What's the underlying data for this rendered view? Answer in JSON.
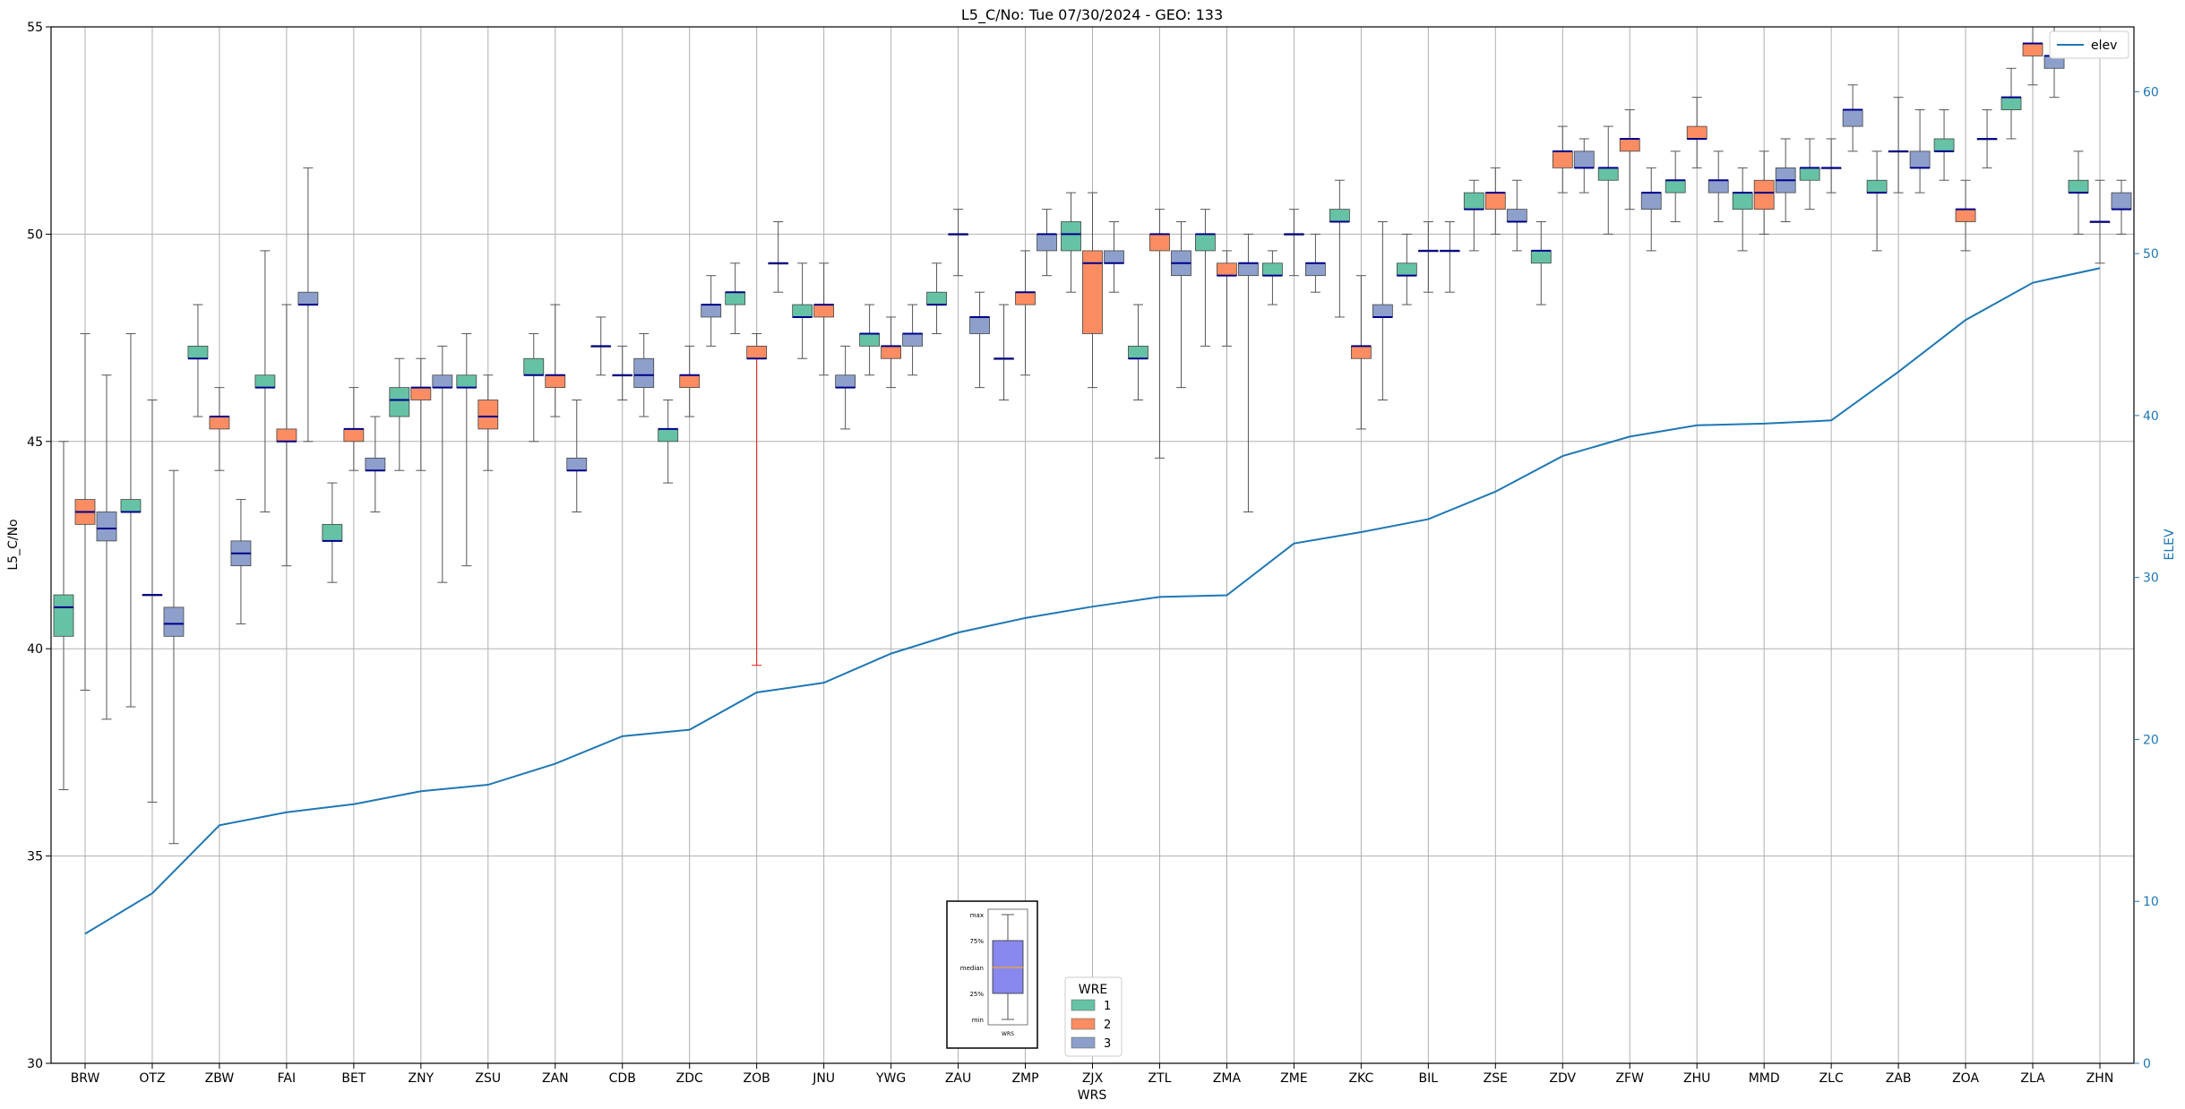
{
  "chart_data": {
    "type": "box",
    "title": "L5_C/No: Tue 07/30/2024 - GEO: 133",
    "xlabel": "WRS",
    "ylabel": "L5_C/No",
    "y2label": "ELEV",
    "ylim": [
      30,
      55
    ],
    "y2lim": [
      0,
      64
    ],
    "yticks": [
      30,
      35,
      40,
      45,
      50,
      55
    ],
    "y2ticks": [
      0,
      10,
      20,
      30,
      40,
      50,
      60
    ],
    "grid": true,
    "categories": [
      "BRW",
      "OTZ",
      "ZBW",
      "FAI",
      "BET",
      "ZNY",
      "ZSU",
      "ZAN",
      "CDB",
      "ZDC",
      "ZOB",
      "JNU",
      "YWG",
      "ZAU",
      "ZMP",
      "ZJX",
      "ZTL",
      "ZMA",
      "ZME",
      "ZKC",
      "BIL",
      "ZSE",
      "ZDV",
      "ZFW",
      "ZHU",
      "MMD",
      "ZLC",
      "ZAB",
      "ZOA",
      "ZLA",
      "ZHN"
    ],
    "colors": {
      "1": "#66c2a5",
      "2": "#fc8d62",
      "3": "#8da0cb",
      "elev": "#1f77b4",
      "median": "#00008b",
      "anomaly": "#e41a1c"
    },
    "legend_wre": {
      "title": "WRE",
      "position": "bottom-center",
      "entries": [
        "1",
        "2",
        "3"
      ]
    },
    "legend_elev": {
      "position": "top-right",
      "label": "elev"
    },
    "key_box": {
      "labels": [
        "max",
        "75%",
        "median",
        "25%",
        "min"
      ],
      "footer": "WRS"
    },
    "elev": [
      8,
      10.5,
      14.7,
      15.5,
      16,
      16.8,
      17.2,
      18.5,
      20.2,
      20.6,
      22.9,
      23.5,
      25.3,
      26.6,
      27.5,
      28.2,
      28.8,
      28.9,
      32.1,
      32.8,
      33.6,
      35.3,
      37.5,
      38.7,
      39.4,
      39.5,
      39.7,
      42.7,
      45.9,
      48.2,
      49.1
    ],
    "boxes": [
      {
        "cat": "BRW",
        "wre": 1,
        "min": 36.6,
        "q1": 40.3,
        "med": 41,
        "q3": 41.3,
        "max": 45
      },
      {
        "cat": "BRW",
        "wre": 2,
        "min": 39,
        "q1": 43,
        "med": 43.3,
        "q3": 43.6,
        "max": 47.6
      },
      {
        "cat": "BRW",
        "wre": 3,
        "min": 38.3,
        "q1": 42.6,
        "med": 42.9,
        "q3": 43.3,
        "max": 46.6
      },
      {
        "cat": "OTZ",
        "wre": 1,
        "min": 38.6,
        "q1": 43.3,
        "med": 43.3,
        "q3": 43.6,
        "max": 47.6
      },
      {
        "cat": "OTZ",
        "wre": 2,
        "min": 36.3,
        "q1": 41.3,
        "med": 41.3,
        "q3": 41.3,
        "max": 46
      },
      {
        "cat": "OTZ",
        "wre": 3,
        "min": 35.3,
        "q1": 40.3,
        "med": 40.6,
        "q3": 41,
        "max": 44.3
      },
      {
        "cat": "ZBW",
        "wre": 1,
        "min": 45.6,
        "q1": 47,
        "med": 47,
        "q3": 47.3,
        "max": 48.3
      },
      {
        "cat": "ZBW",
        "wre": 2,
        "min": 44.3,
        "q1": 45.3,
        "med": 45.6,
        "q3": 45.6,
        "max": 46.3
      },
      {
        "cat": "ZBW",
        "wre": 3,
        "min": 40.6,
        "q1": 42,
        "med": 42.3,
        "q3": 42.6,
        "max": 43.6
      },
      {
        "cat": "FAI",
        "wre": 1,
        "min": 43.3,
        "q1": 46.3,
        "med": 46.3,
        "q3": 46.6,
        "max": 49.6
      },
      {
        "cat": "FAI",
        "wre": 2,
        "min": 42,
        "q1": 45,
        "med": 45,
        "q3": 45.3,
        "max": 48.3
      },
      {
        "cat": "FAI",
        "wre": 3,
        "min": 45,
        "q1": 48.3,
        "med": 48.3,
        "q3": 48.6,
        "max": 51.6
      },
      {
        "cat": "BET",
        "wre": 1,
        "min": 41.6,
        "q1": 42.6,
        "med": 42.6,
        "q3": 43,
        "max": 44
      },
      {
        "cat": "BET",
        "wre": 2,
        "min": 44.3,
        "q1": 45,
        "med": 45.3,
        "q3": 45.3,
        "max": 46.3
      },
      {
        "cat": "BET",
        "wre": 3,
        "min": 43.3,
        "q1": 44.3,
        "med": 44.3,
        "q3": 44.6,
        "max": 45.6
      },
      {
        "cat": "ZNY",
        "wre": 1,
        "min": 44.3,
        "q1": 45.6,
        "med": 46,
        "q3": 46.3,
        "max": 47
      },
      {
        "cat": "ZNY",
        "wre": 2,
        "min": 44.3,
        "q1": 46,
        "med": 46.3,
        "q3": 46.3,
        "max": 47
      },
      {
        "cat": "ZNY",
        "wre": 3,
        "min": 41.6,
        "q1": 46.3,
        "med": 46.3,
        "q3": 46.6,
        "max": 47.3
      },
      {
        "cat": "ZSU",
        "wre": 1,
        "min": 42,
        "q1": 46.3,
        "med": 46.3,
        "q3": 46.6,
        "max": 47.6
      },
      {
        "cat": "ZSU",
        "wre": 2,
        "min": 44.3,
        "q1": 45.3,
        "med": 45.6,
        "q3": 46,
        "max": 46.6
      },
      {
        "cat": "ZAN",
        "wre": 1,
        "min": 45,
        "q1": 46.6,
        "med": 46.6,
        "q3": 47,
        "max": 47.6
      },
      {
        "cat": "ZAN",
        "wre": 2,
        "min": 45.6,
        "q1": 46.3,
        "med": 46.6,
        "q3": 46.6,
        "max": 48.3
      },
      {
        "cat": "ZAN",
        "wre": 3,
        "min": 43.3,
        "q1": 44.3,
        "med": 44.3,
        "q3": 44.6,
        "max": 46
      },
      {
        "cat": "CDB",
        "wre": 2,
        "min": 46,
        "q1": 46.6,
        "med": 46.6,
        "q3": 46.6,
        "max": 47.3
      },
      {
        "cat": "CDB",
        "wre": 1,
        "min": 46.6,
        "q1": 47.3,
        "med": 47.3,
        "q3": 47.3,
        "max": 48
      },
      {
        "cat": "CDB",
        "wre": 3,
        "min": 45.6,
        "q1": 46.3,
        "med": 46.6,
        "q3": 47,
        "max": 47.6
      },
      {
        "cat": "ZDC",
        "wre": 1,
        "min": 44,
        "q1": 45,
        "med": 45.3,
        "q3": 45.3,
        "max": 46
      },
      {
        "cat": "ZDC",
        "wre": 2,
        "min": 45.6,
        "q1": 46.3,
        "med": 46.6,
        "q3": 46.6,
        "max": 47.3
      },
      {
        "cat": "ZDC",
        "wre": 3,
        "min": 47.3,
        "q1": 48,
        "med": 48.3,
        "q3": 48.3,
        "max": 49
      },
      {
        "cat": "ZOB",
        "wre": 1,
        "min": 47.6,
        "q1": 48.3,
        "med": 48.6,
        "q3": 48.6,
        "max": 49.3
      },
      {
        "cat": "ZOB",
        "wre": 2,
        "min": 39.6,
        "q1": 47,
        "med": 47,
        "q3": 47.3,
        "max": 47.6,
        "anomaly": true
      },
      {
        "cat": "ZOB",
        "wre": 3,
        "min": 48.6,
        "q1": 49.3,
        "med": 49.3,
        "q3": 49.3,
        "max": 50.3
      },
      {
        "cat": "JNU",
        "wre": 1,
        "min": 47,
        "q1": 48,
        "med": 48,
        "q3": 48.3,
        "max": 49.3
      },
      {
        "cat": "JNU",
        "wre": 2,
        "min": 46.6,
        "q1": 48,
        "med": 48.3,
        "q3": 48.3,
        "max": 49.3
      },
      {
        "cat": "JNU",
        "wre": 3,
        "min": 45.3,
        "q1": 46.3,
        "med": 46.3,
        "q3": 46.6,
        "max": 47.3
      },
      {
        "cat": "YWG",
        "wre": 1,
        "min": 46.6,
        "q1": 47.3,
        "med": 47.6,
        "q3": 47.6,
        "max": 48.3
      },
      {
        "cat": "YWG",
        "wre": 2,
        "min": 46.3,
        "q1": 47,
        "med": 47.3,
        "q3": 47.3,
        "max": 48
      },
      {
        "cat": "YWG",
        "wre": 3,
        "min": 46.6,
        "q1": 47.3,
        "med": 47.6,
        "q3": 47.6,
        "max": 48.3
      },
      {
        "cat": "ZAU",
        "wre": 1,
        "min": 47.6,
        "q1": 48.3,
        "med": 48.3,
        "q3": 48.6,
        "max": 49.3
      },
      {
        "cat": "ZAU",
        "wre": 2,
        "min": 49,
        "q1": 50,
        "med": 50,
        "q3": 50,
        "max": 50.6
      },
      {
        "cat": "ZAU",
        "wre": 3,
        "min": 46.3,
        "q1": 47.6,
        "med": 48,
        "q3": 48,
        "max": 48.6
      },
      {
        "cat": "ZMP",
        "wre": 1,
        "min": 46,
        "q1": 47,
        "med": 47,
        "q3": 47,
        "max": 48.3
      },
      {
        "cat": "ZMP",
        "wre": 2,
        "min": 46.6,
        "q1": 48.3,
        "med": 48.6,
        "q3": 48.6,
        "max": 49.6
      },
      {
        "cat": "ZMP",
        "wre": 3,
        "min": 49,
        "q1": 49.6,
        "med": 50,
        "q3": 50,
        "max": 50.6
      },
      {
        "cat": "ZJX",
        "wre": 1,
        "min": 48.6,
        "q1": 49.6,
        "med": 50,
        "q3": 50.3,
        "max": 51
      },
      {
        "cat": "ZJX",
        "wre": 2,
        "min": 46.3,
        "q1": 47.6,
        "med": 49.3,
        "q3": 49.6,
        "max": 51
      },
      {
        "cat": "ZJX",
        "wre": 3,
        "min": 48.6,
        "q1": 49.3,
        "med": 49.3,
        "q3": 49.6,
        "max": 50.3
      },
      {
        "cat": "ZTL",
        "wre": 1,
        "min": 46,
        "q1": 47,
        "med": 47,
        "q3": 47.3,
        "max": 48.3
      },
      {
        "cat": "ZTL",
        "wre": 2,
        "min": 44.6,
        "q1": 49.6,
        "med": 50,
        "q3": 50,
        "max": 50.6
      },
      {
        "cat": "ZTL",
        "wre": 3,
        "min": 46.3,
        "q1": 49,
        "med": 49.3,
        "q3": 49.6,
        "max": 50.3
      },
      {
        "cat": "ZMA",
        "wre": 1,
        "min": 47.3,
        "q1": 49.6,
        "med": 50,
        "q3": 50,
        "max": 50.6
      },
      {
        "cat": "ZMA",
        "wre": 2,
        "min": 47.3,
        "q1": 49,
        "med": 49,
        "q3": 49.3,
        "max": 49.6
      },
      {
        "cat": "ZMA",
        "wre": 3,
        "min": 43.3,
        "q1": 49,
        "med": 49.3,
        "q3": 49.3,
        "max": 50
      },
      {
        "cat": "ZME",
        "wre": 2,
        "min": 49,
        "q1": 50,
        "med": 50,
        "q3": 50,
        "max": 50.6
      },
      {
        "cat": "ZME",
        "wre": 1,
        "min": 48.3,
        "q1": 49,
        "med": 49,
        "q3": 49.3,
        "max": 49.6
      },
      {
        "cat": "ZME",
        "wre": 3,
        "min": 48.6,
        "q1": 49,
        "med": 49.3,
        "q3": 49.3,
        "max": 50
      },
      {
        "cat": "ZKC",
        "wre": 1,
        "min": 48,
        "q1": 50.3,
        "med": 50.3,
        "q3": 50.6,
        "max": 51.3
      },
      {
        "cat": "ZKC",
        "wre": 2,
        "min": 45.3,
        "q1": 47,
        "med": 47.3,
        "q3": 47.3,
        "max": 49
      },
      {
        "cat": "ZKC",
        "wre": 3,
        "min": 46,
        "q1": 48,
        "med": 48,
        "q3": 48.3,
        "max": 50.3
      },
      {
        "cat": "BIL",
        "wre": 1,
        "min": 48.3,
        "q1": 49,
        "med": 49,
        "q3": 49.3,
        "max": 50
      },
      {
        "cat": "BIL",
        "wre": 2,
        "min": 48.6,
        "q1": 49.6,
        "med": 49.6,
        "q3": 49.6,
        "max": 50.3
      },
      {
        "cat": "BIL",
        "wre": 3,
        "min": 48.6,
        "q1": 49.6,
        "med": 49.6,
        "q3": 49.6,
        "max": 50.3
      },
      {
        "cat": "ZSE",
        "wre": 1,
        "min": 49.6,
        "q1": 50.6,
        "med": 50.6,
        "q3": 51,
        "max": 51.3
      },
      {
        "cat": "ZSE",
        "wre": 2,
        "min": 50,
        "q1": 50.6,
        "med": 51,
        "q3": 51,
        "max": 51.6
      },
      {
        "cat": "ZSE",
        "wre": 3,
        "min": 49.6,
        "q1": 50.3,
        "med": 50.3,
        "q3": 50.6,
        "max": 51.3
      },
      {
        "cat": "ZDV",
        "wre": 1,
        "min": 48.3,
        "q1": 49.3,
        "med": 49.6,
        "q3": 49.6,
        "max": 50.3
      },
      {
        "cat": "ZDV",
        "wre": 2,
        "min": 51,
        "q1": 51.6,
        "med": 52,
        "q3": 52,
        "max": 52.6
      },
      {
        "cat": "ZDV",
        "wre": 3,
        "min": 51,
        "q1": 51.6,
        "med": 51.6,
        "q3": 52,
        "max": 52.3
      },
      {
        "cat": "ZFW",
        "wre": 1,
        "min": 50,
        "q1": 51.3,
        "med": 51.6,
        "q3": 51.6,
        "max": 52.6
      },
      {
        "cat": "ZFW",
        "wre": 2,
        "min": 50.6,
        "q1": 52,
        "med": 52.3,
        "q3": 52.3,
        "max": 53
      },
      {
        "cat": "ZFW",
        "wre": 3,
        "min": 49.6,
        "q1": 50.6,
        "med": 51,
        "q3": 51,
        "max": 51.6
      },
      {
        "cat": "ZHU",
        "wre": 1,
        "min": 50.3,
        "q1": 51,
        "med": 51.3,
        "q3": 51.3,
        "max": 52
      },
      {
        "cat": "ZHU",
        "wre": 2,
        "min": 51.6,
        "q1": 52.3,
        "med": 52.3,
        "q3": 52.6,
        "max": 53.3
      },
      {
        "cat": "ZHU",
        "wre": 3,
        "min": 50.3,
        "q1": 51,
        "med": 51.3,
        "q3": 51.3,
        "max": 52
      },
      {
        "cat": "MMD",
        "wre": 1,
        "min": 49.6,
        "q1": 50.6,
        "med": 51,
        "q3": 51,
        "max": 51.6
      },
      {
        "cat": "MMD",
        "wre": 2,
        "min": 50,
        "q1": 50.6,
        "med": 51,
        "q3": 51.3,
        "max": 52
      },
      {
        "cat": "MMD",
        "wre": 3,
        "min": 50.3,
        "q1": 51,
        "med": 51.3,
        "q3": 51.6,
        "max": 52.3
      },
      {
        "cat": "ZLC",
        "wre": 1,
        "min": 50.6,
        "q1": 51.3,
        "med": 51.6,
        "q3": 51.6,
        "max": 52.3
      },
      {
        "cat": "ZLC",
        "wre": 2,
        "min": 51,
        "q1": 51.6,
        "med": 51.6,
        "q3": 51.6,
        "max": 52.3
      },
      {
        "cat": "ZLC",
        "wre": 3,
        "min": 52,
        "q1": 52.6,
        "med": 53,
        "q3": 53,
        "max": 53.6
      },
      {
        "cat": "ZAB",
        "wre": 1,
        "min": 49.6,
        "q1": 51,
        "med": 51,
        "q3": 51.3,
        "max": 52
      },
      {
        "cat": "ZAB",
        "wre": 2,
        "min": 51,
        "q1": 52,
        "med": 52,
        "q3": 52,
        "max": 53.3
      },
      {
        "cat": "ZAB",
        "wre": 3,
        "min": 51,
        "q1": 51.6,
        "med": 51.6,
        "q3": 52,
        "max": 53
      },
      {
        "cat": "ZOA",
        "wre": 1,
        "min": 51.3,
        "q1": 52,
        "med": 52,
        "q3": 52.3,
        "max": 53
      },
      {
        "cat": "ZOA",
        "wre": 2,
        "min": 49.6,
        "q1": 50.3,
        "med": 50.6,
        "q3": 50.6,
        "max": 51.3
      },
      {
        "cat": "ZOA",
        "wre": 3,
        "min": 51.6,
        "q1": 52.3,
        "med": 52.3,
        "q3": 52.3,
        "max": 53
      },
      {
        "cat": "ZLA",
        "wre": 1,
        "min": 52.3,
        "q1": 53,
        "med": 53.3,
        "q3": 53.3,
        "max": 54
      },
      {
        "cat": "ZLA",
        "wre": 2,
        "min": 53.6,
        "q1": 54.3,
        "med": 54.6,
        "q3": 54.6,
        "max": 55
      },
      {
        "cat": "ZLA",
        "wre": 3,
        "min": 53.3,
        "q1": 54,
        "med": 54.3,
        "q3": 54.3,
        "max": 55
      },
      {
        "cat": "ZHN",
        "wre": 1,
        "min": 50,
        "q1": 51,
        "med": 51,
        "q3": 51.3,
        "max": 52
      },
      {
        "cat": "ZHN",
        "wre": 2,
        "min": 49.3,
        "q1": 50.3,
        "med": 50.3,
        "q3": 50.3,
        "max": 51.3
      },
      {
        "cat": "ZHN",
        "wre": 3,
        "min": 50,
        "q1": 50.6,
        "med": 50.6,
        "q3": 51,
        "max": 51.3
      }
    ]
  }
}
